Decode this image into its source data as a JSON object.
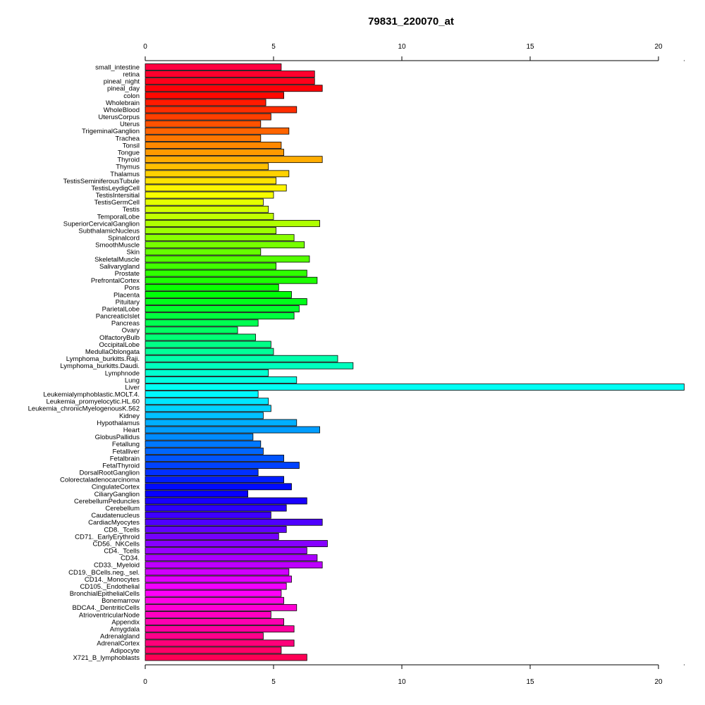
{
  "chart_data": {
    "type": "bar",
    "orientation": "horizontal",
    "title": "79831_220070_at",
    "xlabel": "",
    "ylabel": "",
    "xlim": [
      0,
      21
    ],
    "x_ticks": [
      0,
      5,
      10,
      15,
      20
    ],
    "x_tick_labels": [
      "0",
      "5",
      "10",
      "15",
      "20"
    ],
    "axes": [
      "top",
      "bottom"
    ],
    "grid": false,
    "legend": "none",
    "colors": "rainbow gradient by category order (red → magenta → violet → blue → cyan → green → yellow → orange → red)",
    "categories": [
      "small_intestine",
      "retina",
      "pineal_night",
      "pineal_day",
      "colon",
      "Wholebrain",
      "WholeBlood",
      "UterusCorpus",
      "Uterus",
      "TrigeminalGanglion",
      "Trachea",
      "Tonsil",
      "Tongue",
      "Thyroid",
      "Thymus",
      "Thalamus",
      "TestisSeminiferousTubule",
      "TestisLeydigCell",
      "TestisIntersitial",
      "TestisGermCell",
      "Testis",
      "TemporalLobe",
      "SuperiorCervicalGanglion",
      "SubthalamicNucleus",
      "Spinalcord",
      "SmoothMuscle",
      "Skin",
      "SkeletalMuscle",
      "Salivarygland",
      "Prostate",
      "PrefrontalCortex",
      "Pons",
      "Placenta",
      "Pituitary",
      "ParietalLobe",
      "PancreaticIslet",
      "Pancreas",
      "Ovary",
      "OlfactoryBulb",
      "OccipitalLobe",
      "MedullaOblongata",
      "Lymphoma_burkitts.Raji.",
      "Lymphoma_burkitts.Daudi.",
      "Lymphnode",
      "Lung",
      "Liver",
      "Leukemialymphoblastic.MOLT.4.",
      "Leukemia_promyelocytic.HL.60",
      "Leukemia_chronicMyelogenousK.562",
      "Kidney",
      "Hypothalamus",
      "Heart",
      "GlobusPallidus",
      "Fetallung",
      "Fetalliver",
      "Fetalbrain",
      "FetalThyroid",
      "DorsalRootGanglion",
      "Colorectaladenocarcinoma",
      "CingulateCortex",
      "CiliaryGanglion",
      "CerebellumPeduncles",
      "Cerebellum",
      "Caudatenucleus",
      "CardiacMyocytes",
      "CD8._Tcells",
      "CD71._EarlyErythroid",
      "CD56._NKCells",
      "CD4._Tcells",
      "CD34.",
      "CD33._Myeloid",
      "CD19._BCells.neg._sel.",
      "CD14._Monocytes",
      "CD105._Endothelial",
      "BronchialEpithelialCells",
      "Bonemarrow",
      "BDCA4._DentriticCells",
      "AtrioventricularNode",
      "Appendix",
      "Amygdala",
      "Adrenalgland",
      "AdrenalCortex",
      "Adipocyte",
      "X721_B_lymphoblasts"
    ],
    "values": [
      5.3,
      6.6,
      6.6,
      6.9,
      5.4,
      4.7,
      5.9,
      4.9,
      4.5,
      5.6,
      4.5,
      5.3,
      5.4,
      6.9,
      4.8,
      5.6,
      5.1,
      5.5,
      5.0,
      4.6,
      4.8,
      5.0,
      6.8,
      5.1,
      5.8,
      6.2,
      4.5,
      6.4,
      5.1,
      6.3,
      6.7,
      5.2,
      5.7,
      6.3,
      6.0,
      5.8,
      4.4,
      3.6,
      4.3,
      4.9,
      5.0,
      7.5,
      8.1,
      4.8,
      5.9,
      21.0,
      4.4,
      4.8,
      4.9,
      4.6,
      5.9,
      6.8,
      4.2,
      4.5,
      4.6,
      5.4,
      6.0,
      4.4,
      5.4,
      5.7,
      4.0,
      6.3,
      5.5,
      4.9,
      6.9,
      5.5,
      5.2,
      7.1,
      6.3,
      6.7,
      6.9,
      5.6,
      5.7,
      5.5,
      5.3,
      5.4,
      5.9,
      4.9,
      5.4,
      5.8,
      4.6,
      5.8,
      5.3,
      6.3
    ]
  }
}
